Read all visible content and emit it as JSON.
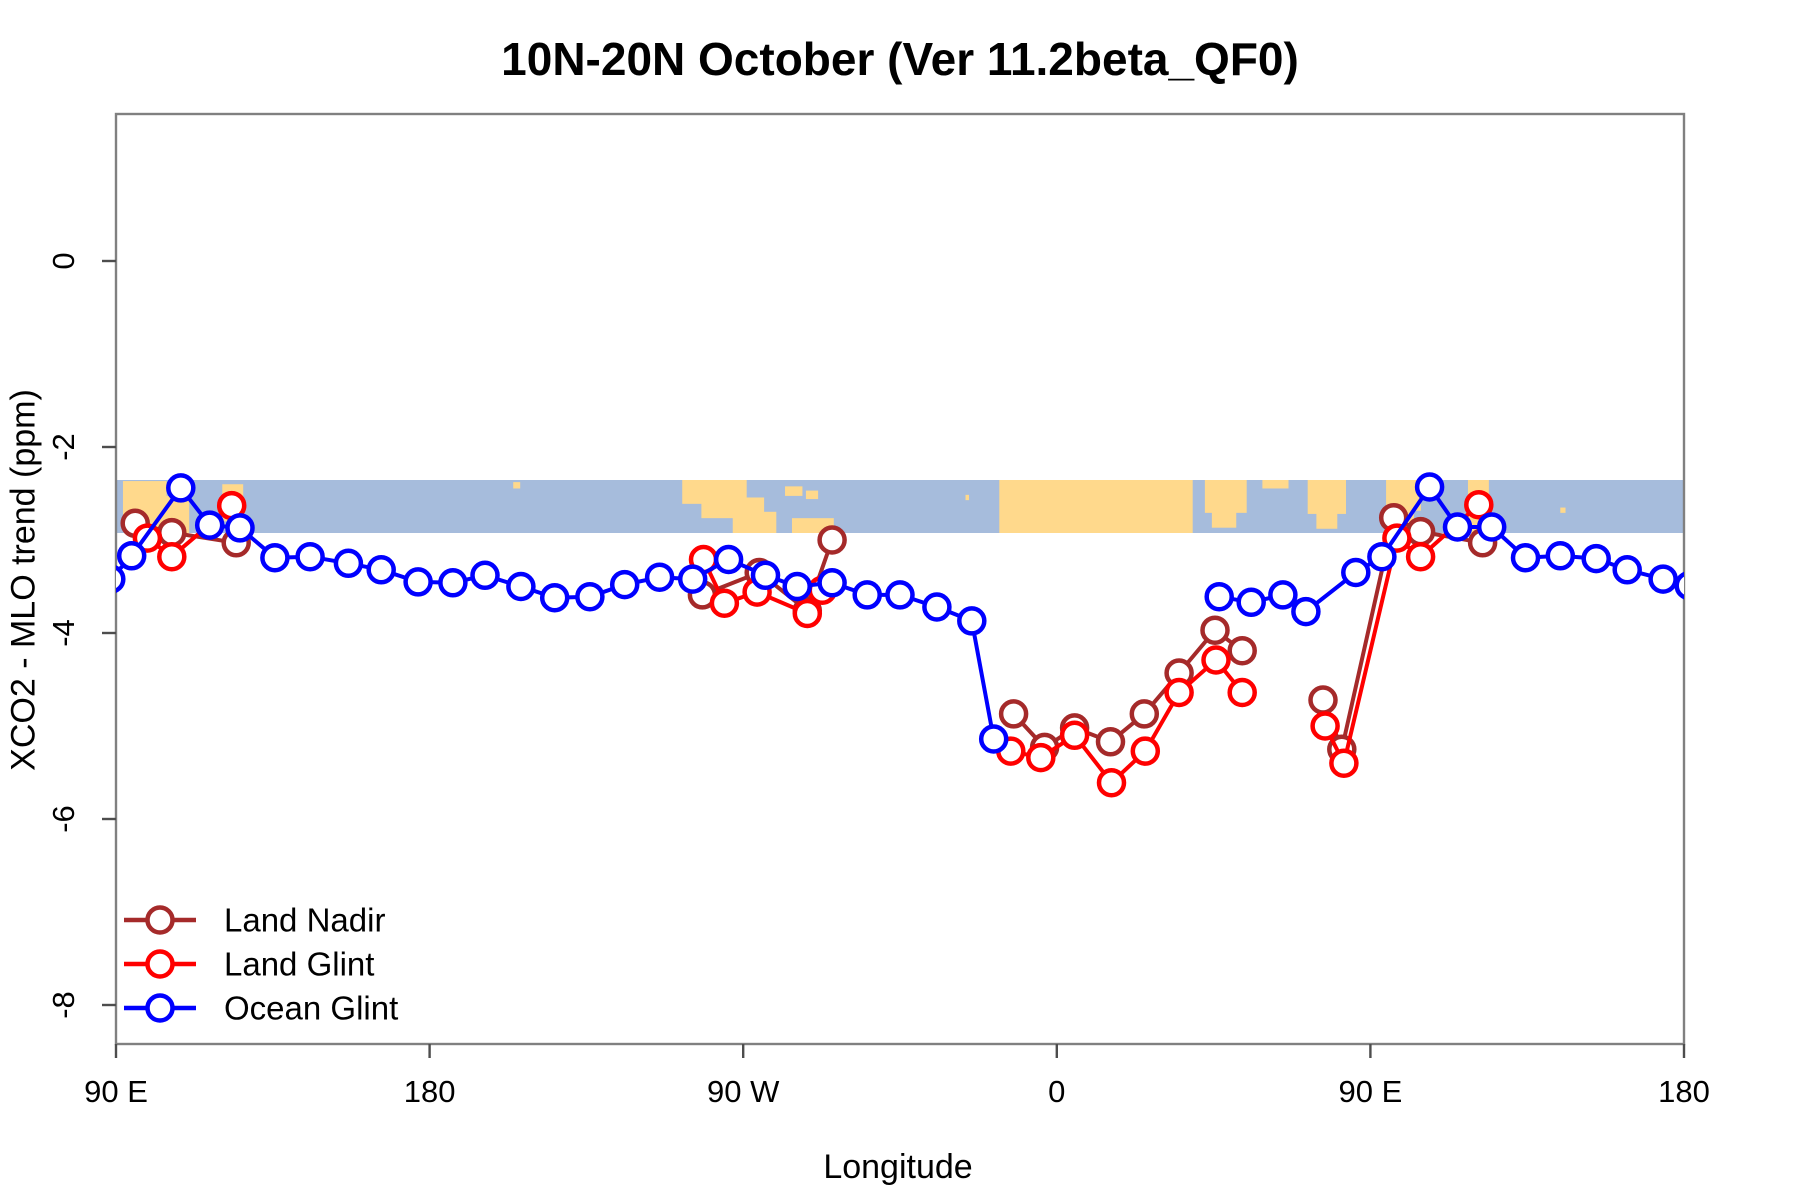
{
  "chart_data": {
    "type": "line",
    "title": "10N-20N October (Ver 11.2beta_QF0)",
    "xlabel": "Longitude",
    "ylabel": "XCO2 - MLO trend (ppm)",
    "axis_note": "x axis is wrapped longitude: 90E -> 180 -> 90W -> 0 -> 90E -> 180, expressed internally as degrees 90..540 east of Greenwich",
    "xlim": [
      90,
      540
    ],
    "ylim": [
      -8.42,
      1.58
    ],
    "grid": false,
    "legend_position": "bottom-left",
    "x_ticks": [
      {
        "pos": 90,
        "label": "90 E"
      },
      {
        "pos": 180,
        "label": "180"
      },
      {
        "pos": 270,
        "label": "90 W"
      },
      {
        "pos": 360,
        "label": "0"
      },
      {
        "pos": 450,
        "label": "90 E"
      },
      {
        "pos": 540,
        "label": "180"
      }
    ],
    "y_ticks": [
      {
        "pos": 0,
        "label": "0"
      },
      {
        "pos": -2,
        "label": "-2"
      },
      {
        "pos": -4,
        "label": "-4"
      },
      {
        "pos": -6,
        "label": "-6"
      },
      {
        "pos": -8,
        "label": "-8"
      }
    ],
    "map_band": {
      "description": "10N-20N latitude world-map strip drawn across the plot",
      "y_top": -2.35,
      "y_bottom": -2.93,
      "ocean_color": "#a6bcdc",
      "land_color": "#ffd98c",
      "land_patches": [
        [
          92,
          104.5,
          0.02,
          0.85
        ],
        [
          98,
          111,
          0.3,
          1.0
        ],
        [
          120.5,
          126.5,
          0.08,
          0.78
        ],
        [
          204,
          206,
          0.04,
          0.16
        ],
        [
          252.5,
          271,
          0.0,
          0.45
        ],
        [
          258,
          276,
          0.33,
          0.72
        ],
        [
          267,
          279.5,
          0.6,
          1.0
        ],
        [
          282,
          287,
          0.12,
          0.3
        ],
        [
          288,
          291.5,
          0.2,
          0.36
        ],
        [
          284,
          296,
          0.72,
          1.0
        ],
        [
          333.8,
          334.8,
          0.28,
          0.38
        ],
        [
          343.5,
          399,
          0.0,
          1.0
        ],
        [
          402.5,
          414.5,
          0.0,
          0.62
        ],
        [
          404.5,
          411.5,
          0.55,
          0.9
        ],
        [
          419,
          426.5,
          0.0,
          0.16
        ],
        [
          432,
          443,
          0.0,
          0.64
        ],
        [
          434.5,
          440.5,
          0.58,
          0.92
        ],
        [
          454.5,
          464.5,
          0.0,
          0.58
        ],
        [
          457,
          462.5,
          0.5,
          0.85
        ],
        [
          478,
          484,
          0.0,
          1.0
        ],
        [
          504.5,
          506,
          0.52,
          0.62
        ]
      ]
    },
    "marker": {
      "shape": "open-circle",
      "radius": 12.5,
      "fill": "#ffffff"
    },
    "colors": {
      "box": "#808080",
      "tick": "#4d4d4d",
      "text": "#000000",
      "background": "#ffffff"
    },
    "series": [
      {
        "name": "Land Nadir",
        "color": "#A52A2A",
        "segments": [
          [
            [
              95.5,
              -2.82
            ],
            [
              106,
              -2.92
            ],
            [
              124.5,
              -3.03
            ]
          ],
          [
            [
              258.3,
              -3.59
            ],
            [
              274.6,
              -3.35
            ],
            [
              288.4,
              -3.76
            ],
            [
              295.5,
              -3.0
            ]
          ],
          [
            [
              347.6,
              -4.87
            ],
            [
              356.5,
              -5.23
            ],
            [
              365.1,
              -5.02
            ],
            [
              375.4,
              -5.17
            ],
            [
              385.1,
              -4.87
            ],
            [
              395.1,
              -4.43
            ],
            [
              405.4,
              -3.97
            ],
            [
              413.2,
              -4.19
            ]
          ],
          [
            [
              436.4,
              -4.72
            ],
            [
              441.8,
              -5.25
            ],
            [
              456.7,
              -2.76
            ],
            [
              464.4,
              -2.91
            ],
            [
              482.2,
              -3.03
            ]
          ]
        ]
      },
      {
        "name": "Land Glint",
        "color": "#FF0000",
        "segments": [
          [
            [
              99,
              -2.98
            ],
            [
              106,
              -3.18
            ],
            [
              123.2,
              -2.63
            ]
          ],
          [
            [
              258.6,
              -3.21
            ],
            [
              264.6,
              -3.68
            ],
            [
              274,
              -3.56
            ],
            [
              288.4,
              -3.79
            ],
            [
              292.7,
              -3.54
            ]
          ],
          [
            [
              346.8,
              -5.27
            ],
            [
              355.4,
              -5.34
            ],
            [
              365.1,
              -5.1
            ],
            [
              375.7,
              -5.61
            ],
            [
              385.4,
              -5.27
            ],
            [
              395.1,
              -4.64
            ],
            [
              405.7,
              -4.29
            ],
            [
              413.2,
              -4.64
            ]
          ],
          [
            [
              437,
              -5.0
            ],
            [
              442.4,
              -5.4
            ],
            [
              457.6,
              -2.98
            ],
            [
              464.4,
              -3.18
            ],
            [
              481.1,
              -2.62
            ]
          ]
        ]
      },
      {
        "name": "Ocean Glint",
        "color": "#0000FF",
        "segments": [
          [
            [
              88.5,
              -3.42
            ],
            [
              94.5,
              -3.17
            ],
            [
              108.6,
              -2.44
            ],
            [
              116.9,
              -2.84
            ],
            [
              125.6,
              -2.87
            ],
            [
              135.6,
              -3.19
            ],
            [
              145.7,
              -3.18
            ],
            [
              156.7,
              -3.25
            ],
            [
              166.1,
              -3.32
            ],
            [
              176.7,
              -3.45
            ],
            [
              186.7,
              -3.46
            ],
            [
              195.9,
              -3.38
            ],
            [
              206.2,
              -3.5
            ],
            [
              215.9,
              -3.62
            ],
            [
              226,
              -3.61
            ],
            [
              236,
              -3.48
            ],
            [
              246,
              -3.4
            ],
            [
              255.5,
              -3.42
            ],
            [
              265.8,
              -3.21
            ],
            [
              276.4,
              -3.38
            ],
            [
              285.5,
              -3.5
            ],
            [
              295.5,
              -3.46
            ],
            [
              305.6,
              -3.59
            ],
            [
              315,
              -3.59
            ],
            [
              325.6,
              -3.72
            ],
            [
              335.6,
              -3.87
            ],
            [
              341.9,
              -5.14
            ]
          ],
          [
            [
              406.6,
              -3.61
            ],
            [
              415.8,
              -3.67
            ],
            [
              424.9,
              -3.59
            ],
            [
              431.5,
              -3.77
            ],
            [
              445.8,
              -3.35
            ],
            [
              453.3,
              -3.18
            ],
            [
              467,
              -2.43
            ],
            [
              475,
              -2.86
            ],
            [
              484.8,
              -2.86
            ],
            [
              494.5,
              -3.19
            ],
            [
              504.5,
              -3.17
            ],
            [
              514.8,
              -3.2
            ],
            [
              523.7,
              -3.32
            ],
            [
              534,
              -3.42
            ],
            [
              541.5,
              -3.49
            ]
          ]
        ]
      }
    ],
    "legend": [
      {
        "label": "Land Nadir",
        "color": "#A52A2A"
      },
      {
        "label": "Land Glint",
        "color": "#FF0000"
      },
      {
        "label": "Ocean Glint",
        "color": "#0000FF"
      }
    ]
  }
}
